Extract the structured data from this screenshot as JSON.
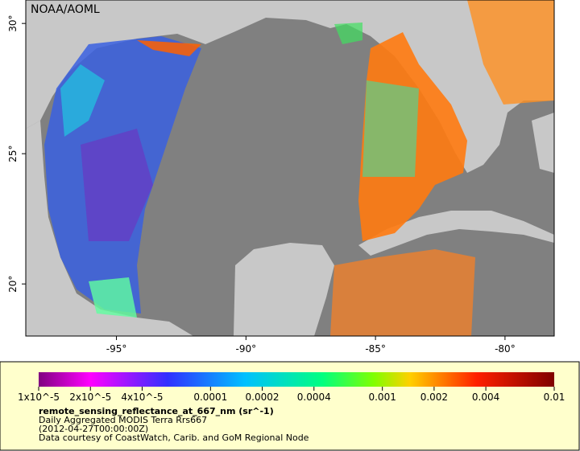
{
  "map": {
    "label": "NOAA/AOML",
    "xlim": [
      -98.5,
      -78.1
    ],
    "ylim": [
      18,
      30.9
    ],
    "xticks": [
      {
        "value": -95,
        "label": "-95°"
      },
      {
        "value": -90,
        "label": "-90°"
      },
      {
        "value": -85,
        "label": "-85°"
      },
      {
        "value": -80,
        "label": "-80°"
      }
    ],
    "yticks": [
      {
        "value": 20,
        "label": "20°"
      },
      {
        "value": 25,
        "label": "25°"
      },
      {
        "value": 30,
        "label": "30°"
      }
    ]
  },
  "colorbar": {
    "log_scale": true,
    "lim": [
      1e-05,
      0.01
    ],
    "ticks": [
      {
        "value": 1e-05,
        "label": "1x10^-5"
      },
      {
        "value": 2e-05,
        "label": "2x10^-5"
      },
      {
        "value": 4e-05,
        "label": "4x10^-5"
      },
      {
        "value": 0.0001,
        "label": "0.0001"
      },
      {
        "value": 0.0002,
        "label": "0.0002"
      },
      {
        "value": 0.0004,
        "label": "0.0004"
      },
      {
        "value": 0.001,
        "label": "0.001"
      },
      {
        "value": 0.002,
        "label": "0.002"
      },
      {
        "value": 0.004,
        "label": "0.004"
      },
      {
        "value": 0.01,
        "label": "0.01"
      }
    ],
    "variable": "remote_sensing_reflectance_at_667_nm (sr^-1)",
    "lines": [
      "Daily Aggregated MODIS Terra Rrs667",
      "(2012-04-27T00:00:00Z)",
      "Data courtesy of CoastWatch, Carib. and GoM Regional Node"
    ]
  }
}
